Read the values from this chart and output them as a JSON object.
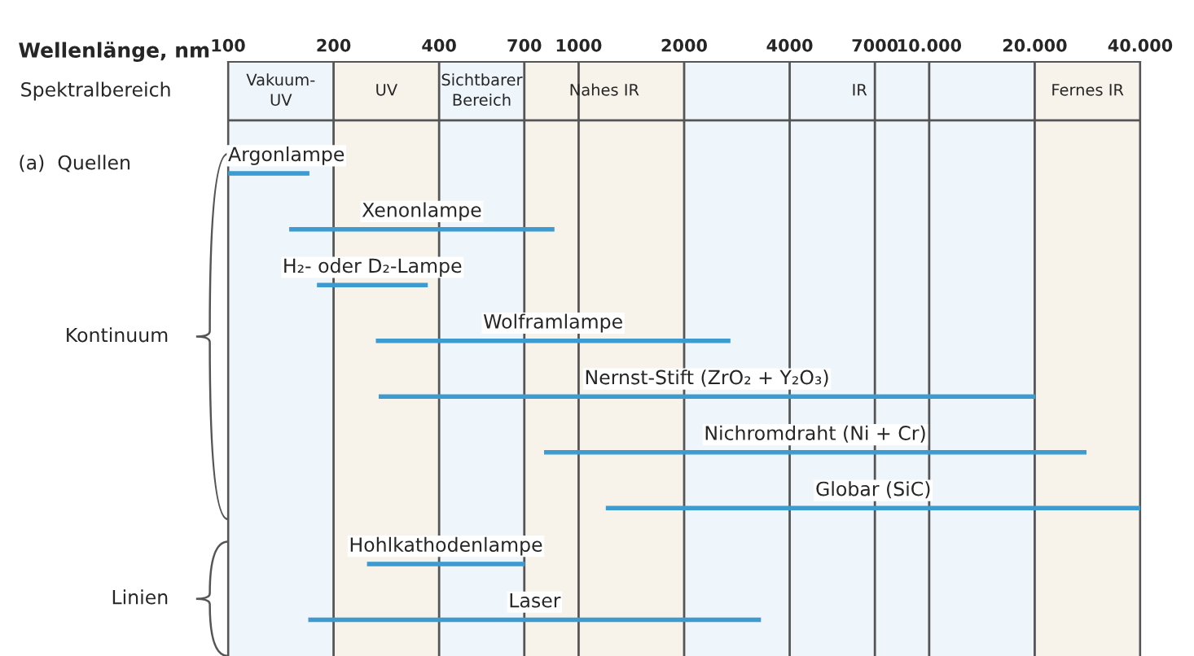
{
  "chart_data": {
    "type": "bar",
    "orientation": "horizontal",
    "log": "x",
    "xlabel": "Wellenlänge, nm",
    "categories": [
      "Argonlampe",
      "Xenonlampe",
      "H₂- oder D₂-Lampe",
      "Wolframlampe",
      "Nernst-Stift (ZrO₂ + Y₂O₃)",
      "Nichromdraht (Ni + Cr)",
      "Globar (SiC)",
      "Hohlkathodenlampe",
      "Laser"
    ],
    "base": [
      100,
      150,
      180,
      265,
      270,
      800,
      1200,
      250,
      170
    ],
    "values": [
      70,
      700,
      190,
      2435,
      19730,
      27200,
      38800,
      450,
      3130
    ],
    "color": "#3d9bd0",
    "xlim": [
      100,
      40000
    ],
    "xticks": [
      100,
      200,
      400,
      700,
      1000,
      2000,
      4000,
      7000,
      {
        "value": 10000,
        "label": "10.000"
      },
      {
        "value": 20000,
        "label": "20.000"
      },
      {
        "value": 40000,
        "label": "40.000"
      }
    ],
    "grid": "x",
    "bands": [
      {
        "axis": "x",
        "from": 100,
        "to": 200,
        "label": "Vakuum-\nUV",
        "color": "#eef5fb"
      },
      {
        "axis": "x",
        "from": 200,
        "to": 400,
        "label": "UV",
        "color": "#f7f3ea"
      },
      {
        "axis": "x",
        "from": 400,
        "to": 700,
        "label": "Sichtbarer\nBereich",
        "color": "#eef5fb"
      },
      {
        "axis": "x",
        "from": 700,
        "to": 2000,
        "label": "Nahes IR",
        "color": "#f7f3ea"
      },
      {
        "axis": "x",
        "from": 2000,
        "to": 20000,
        "label": "IR",
        "color": "#eef5fb"
      },
      {
        "axis": "x",
        "from": 20000,
        "to": 40000,
        "label": "Fernes IR",
        "color": "#f7f3ea"
      }
    ],
    "annotations": [
      "Spektralbereich",
      "(a)  Quellen",
      "Kontinuum",
      "Linien"
    ]
  }
}
